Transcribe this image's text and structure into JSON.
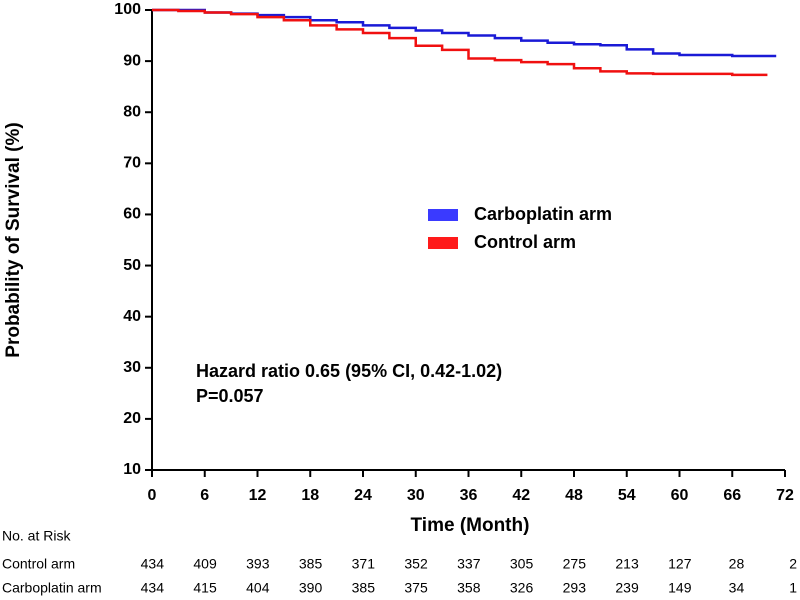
{
  "chart_data": {
    "type": "step",
    "y_label": "Probability of Survival (%)",
    "x_label": "Time (Month)",
    "xlim": [
      0,
      72
    ],
    "xticks": [
      0,
      6,
      12,
      18,
      24,
      30,
      36,
      42,
      48,
      54,
      60,
      66,
      72
    ],
    "ylim": [
      10,
      100
    ],
    "yticks": [
      10,
      20,
      30,
      40,
      50,
      60,
      70,
      80,
      90,
      100
    ],
    "series": [
      {
        "name": "Carboplatin arm",
        "color": "#1a1ad6",
        "x": [
          0,
          3,
          6,
          9,
          12,
          15,
          18,
          21,
          24,
          27,
          30,
          33,
          36,
          39,
          42,
          45,
          48,
          51,
          54,
          57,
          60,
          66,
          71
        ],
        "values": [
          100,
          100,
          99.5,
          99.3,
          99,
          98.6,
          98,
          97.6,
          97,
          96.5,
          96,
          95.5,
          95,
          94.5,
          94,
          93.6,
          93.3,
          93.1,
          92.3,
          91.5,
          91.2,
          91,
          91
        ]
      },
      {
        "name": "Control arm",
        "color": "#f01010",
        "x": [
          0,
          3,
          6,
          9,
          12,
          15,
          18,
          21,
          24,
          27,
          30,
          33,
          36,
          39,
          42,
          45,
          48,
          51,
          54,
          57,
          60,
          66,
          70
        ],
        "values": [
          100,
          99.8,
          99.5,
          99.2,
          98.6,
          98,
          97,
          96.2,
          95.5,
          94.5,
          93,
          92.2,
          90.5,
          90.2,
          89.8,
          89.4,
          88.6,
          88,
          87.6,
          87.5,
          87.5,
          87.3,
          87.3
        ]
      }
    ],
    "legend_colors": [
      "#3a3aff",
      "#ff1a1a"
    ],
    "annotations": [
      "Hazard ratio 0.65 (95% CI, 0.42-1.02)",
      "P=0.057"
    ],
    "risk_table": {
      "title": "No. at Risk",
      "rows": [
        {
          "name": "Control arm",
          "values": [
            434,
            409,
            393,
            385,
            371,
            352,
            337,
            305,
            275,
            213,
            127,
            28,
            2
          ]
        },
        {
          "name": "Carboplatin arm",
          "values": [
            434,
            415,
            404,
            390,
            385,
            375,
            358,
            326,
            293,
            239,
            149,
            34,
            1
          ]
        }
      ]
    }
  }
}
